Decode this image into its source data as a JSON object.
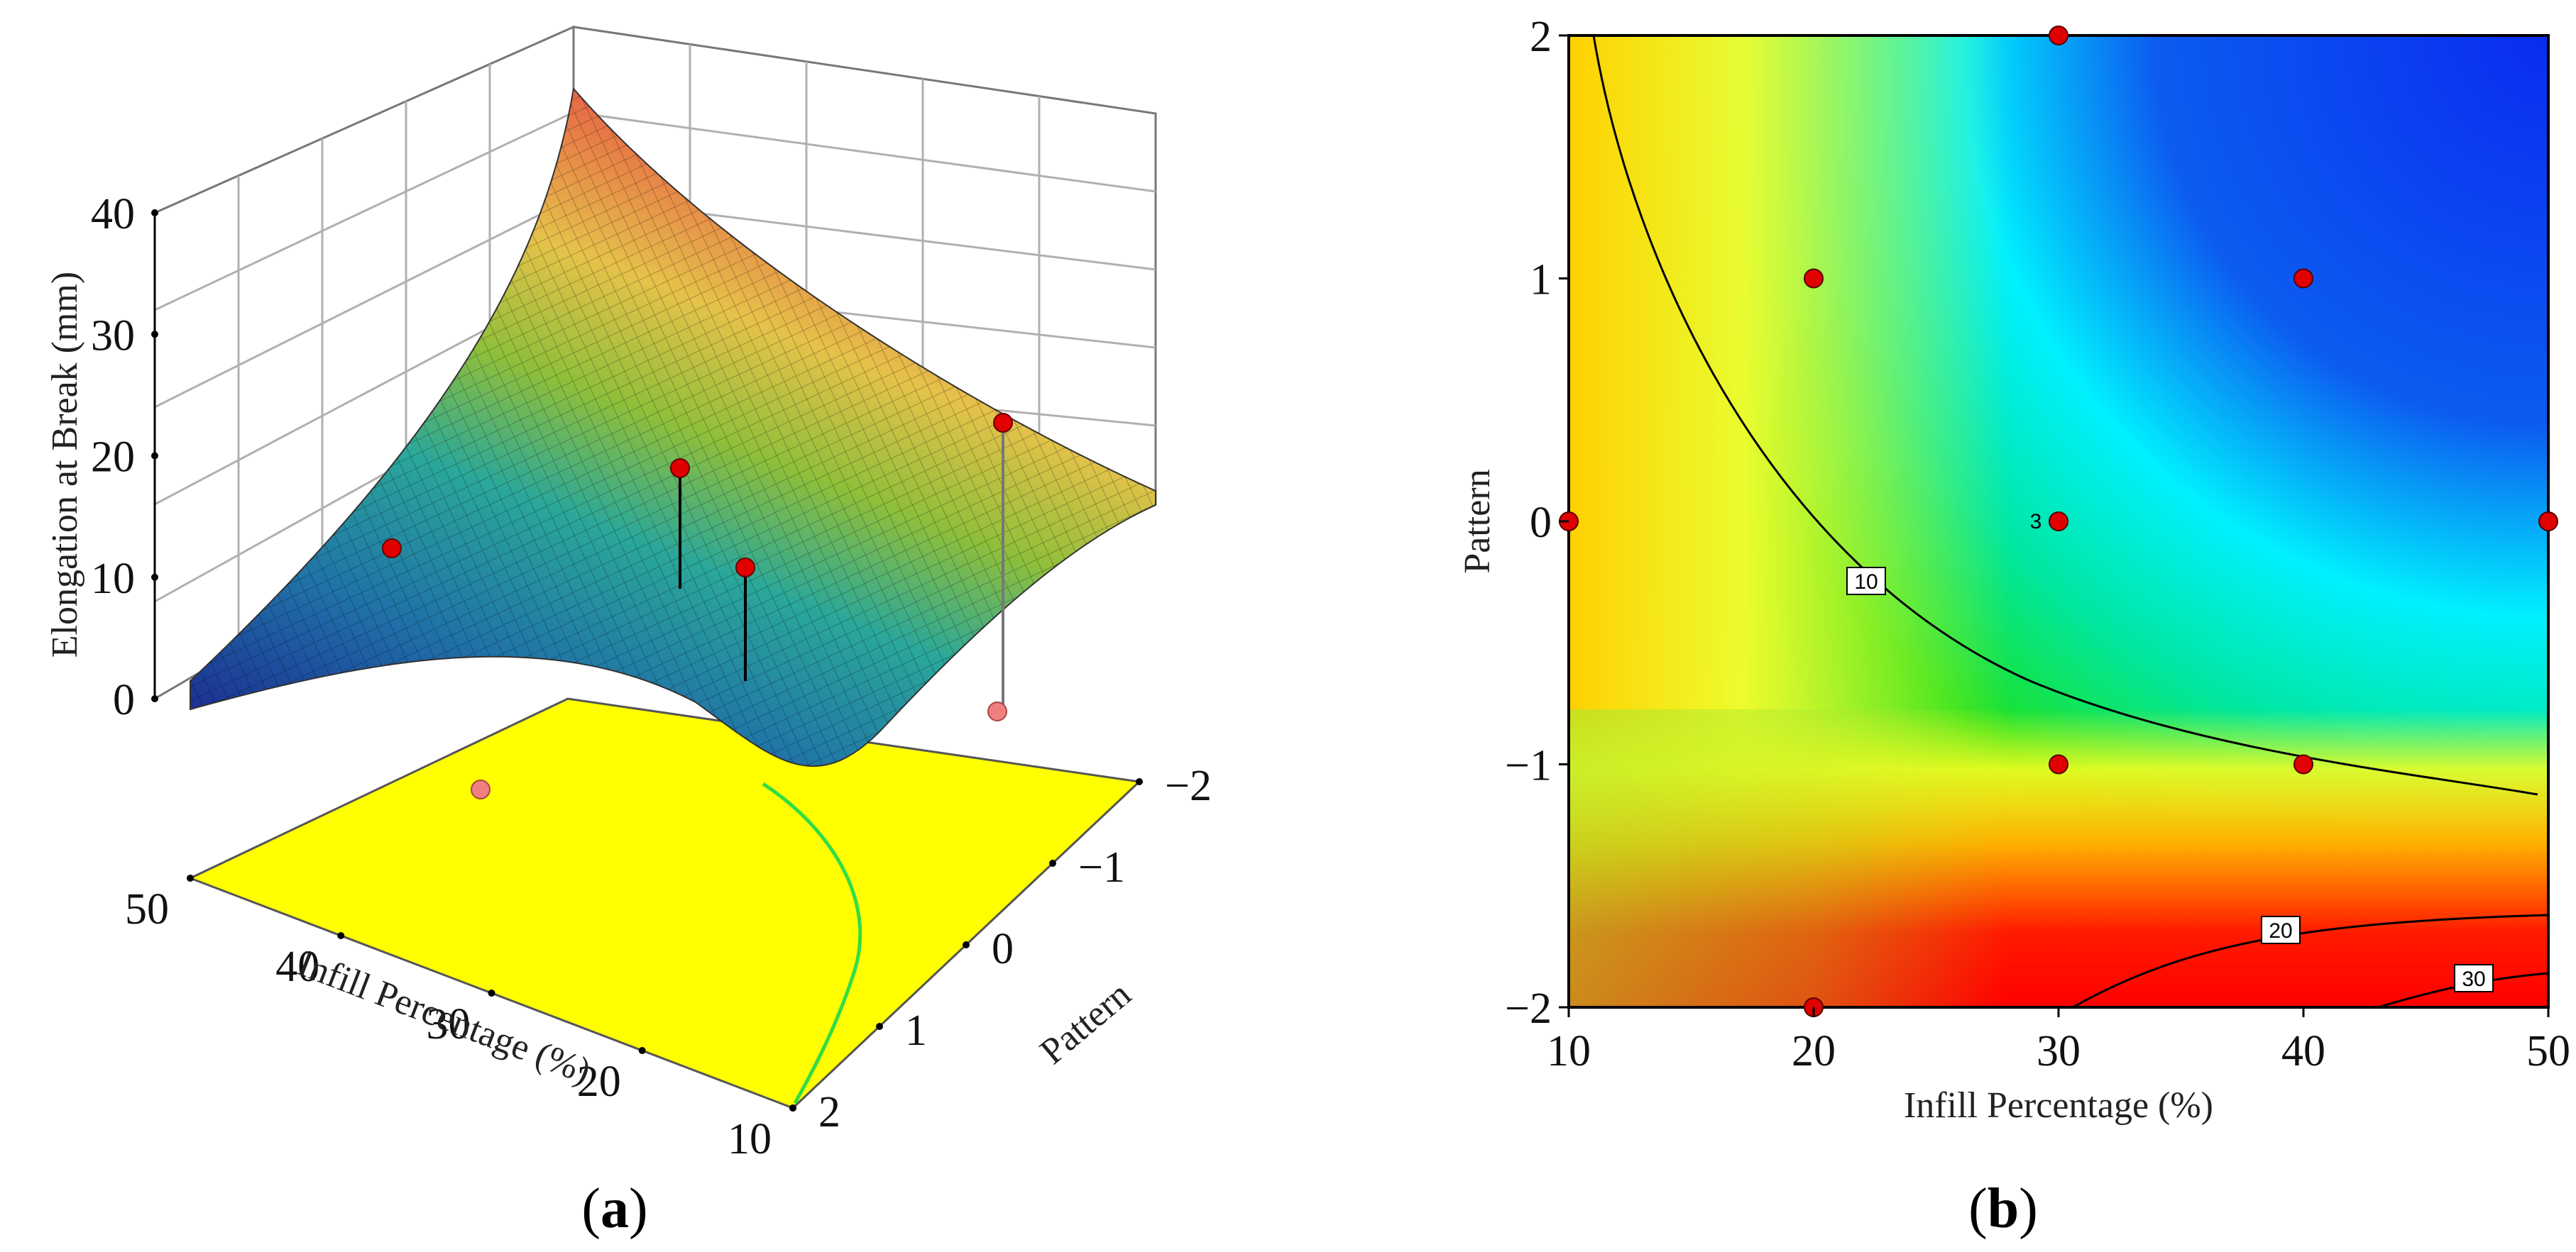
{
  "chart_data": [
    {
      "panel": "(a)",
      "type": "surface3d",
      "zlabel": "Elongation at Break (mm)",
      "xlabel": "Infill Percentage (%)",
      "ylabel": "Pattern",
      "x_ticks": [
        "50",
        "40",
        "30",
        "20",
        "10"
      ],
      "y_ticks": [
        "−2",
        "−1",
        "0",
        "1",
        "2"
      ],
      "z_ticks": [
        "0",
        "10",
        "20",
        "30",
        "40"
      ],
      "xlim": [
        10,
        50
      ],
      "ylim": [
        -2,
        2
      ],
      "zlim": [
        0,
        40
      ],
      "floor_color": "#ffff00",
      "design_points": [
        {
          "x": 50,
          "y": 0,
          "z": 12
        },
        {
          "x": 40,
          "y": 1,
          "z": 17
        },
        {
          "x": 30,
          "y": 0,
          "z": 12
        },
        {
          "x": 20,
          "y": -1,
          "z": 19
        },
        {
          "x": 10,
          "y": 0,
          "z": 1
        }
      ]
    },
    {
      "panel": "(b)",
      "type": "contour",
      "xlabel": "Infill Percentage (%)",
      "ylabel": "Pattern",
      "x_ticks": [
        "10",
        "20",
        "30",
        "40",
        "50"
      ],
      "y_ticks": [
        "−2",
        "−1",
        "0",
        "1",
        "2"
      ],
      "xlim": [
        10,
        50
      ],
      "ylim": [
        -2,
        2
      ],
      "contour_labels": [
        "10",
        "20",
        "30"
      ],
      "replicate_label": "3",
      "design_points": [
        {
          "x": 30,
          "y": 2
        },
        {
          "x": 20,
          "y": 1
        },
        {
          "x": 40,
          "y": 1
        },
        {
          "x": 10,
          "y": 0
        },
        {
          "x": 30,
          "y": 0
        },
        {
          "x": 50,
          "y": 0
        },
        {
          "x": 30,
          "y": -1
        },
        {
          "x": 40,
          "y": -1
        },
        {
          "x": 20,
          "y": -2
        }
      ],
      "point_color": "#e00000"
    }
  ]
}
